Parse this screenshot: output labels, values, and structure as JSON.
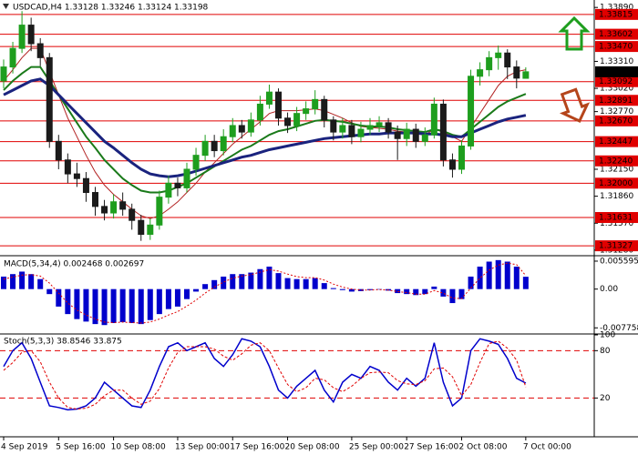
{
  "chart_data": [
    {
      "type": "candlestick",
      "title": "USDCAD,H4 1.33128 1.33246 1.33124 1.33198",
      "categories": [
        "4 Sep 2019",
        null,
        null,
        null,
        null,
        null,
        "5 Sep 16:00",
        null,
        null,
        null,
        null,
        null,
        "10 Sep 08:00",
        null,
        null,
        null,
        null,
        null,
        null,
        "13 Sep 00:00",
        null,
        null,
        null,
        null,
        null,
        "17 Sep 16:00",
        null,
        null,
        null,
        null,
        null,
        "20 Sep 08:00",
        null,
        null,
        null,
        null,
        null,
        null,
        "25 Sep 00:00",
        null,
        null,
        null,
        null,
        null,
        "27 Sep 16:00",
        null,
        null,
        null,
        null,
        null,
        "2 Oct 08:00",
        null,
        null,
        null,
        null,
        null,
        null,
        "7 Oct 00:00"
      ],
      "open": [
        1.331,
        1.3325,
        1.3345,
        1.337,
        1.335,
        1.3335,
        1.3245,
        1.3225,
        1.321,
        1.3205,
        1.319,
        1.3175,
        1.3168,
        1.318,
        1.3172,
        1.316,
        1.3145,
        1.3155,
        1.3185,
        1.32,
        1.3195,
        1.3215,
        1.323,
        1.3245,
        1.3235,
        1.325,
        1.3262,
        1.3255,
        1.3268,
        1.3285,
        1.3298,
        1.327,
        1.3262,
        1.3275,
        1.328,
        1.329,
        1.3268,
        1.3255,
        1.3262,
        1.325,
        1.3258,
        1.3262,
        1.3265,
        1.3255,
        1.3248,
        1.3258,
        1.3245,
        1.3252,
        1.3285,
        1.3225,
        1.3215,
        1.324,
        1.3315,
        1.3322,
        1.3335,
        1.334,
        1.3325,
        1.33128
      ],
      "high": [
        1.3333,
        1.3352,
        1.3385,
        1.3378,
        1.3356,
        1.334,
        1.3252,
        1.3232,
        1.3222,
        1.3212,
        1.3196,
        1.3182,
        1.3188,
        1.319,
        1.3178,
        1.3166,
        1.3162,
        1.3192,
        1.3208,
        1.3206,
        1.3222,
        1.3238,
        1.3252,
        1.3252,
        1.3258,
        1.327,
        1.3268,
        1.3276,
        1.3294,
        1.3306,
        1.3302,
        1.3276,
        1.3282,
        1.3288,
        1.33,
        1.3294,
        1.3272,
        1.327,
        1.3268,
        1.3266,
        1.327,
        1.3272,
        1.327,
        1.3262,
        1.3265,
        1.3264,
        1.326,
        1.3292,
        1.329,
        1.3232,
        1.3246,
        1.3322,
        1.333,
        1.3342,
        1.3348,
        1.3344,
        1.3332,
        1.33246
      ],
      "low": [
        1.3302,
        1.3318,
        1.334,
        1.3342,
        1.3326,
        1.3238,
        1.3215,
        1.32,
        1.3196,
        1.318,
        1.3165,
        1.316,
        1.3162,
        1.3165,
        1.315,
        1.3138,
        1.3139,
        1.315,
        1.3178,
        1.3186,
        1.319,
        1.3208,
        1.3224,
        1.3228,
        1.323,
        1.3244,
        1.3248,
        1.325,
        1.3262,
        1.328,
        1.3262,
        1.3254,
        1.3256,
        1.3268,
        1.3274,
        1.326,
        1.3246,
        1.3248,
        1.3242,
        1.3244,
        1.3252,
        1.3255,
        1.3248,
        1.3225,
        1.324,
        1.3238,
        1.324,
        1.3248,
        1.3218,
        1.3206,
        1.321,
        1.3236,
        1.3305,
        1.3315,
        1.3322,
        1.3312,
        1.3302,
        1.33124
      ],
      "close": [
        1.3325,
        1.3345,
        1.337,
        1.335,
        1.3335,
        1.3245,
        1.3225,
        1.321,
        1.3205,
        1.319,
        1.3175,
        1.3168,
        1.318,
        1.3172,
        1.316,
        1.3145,
        1.3155,
        1.3185,
        1.32,
        1.3195,
        1.3215,
        1.323,
        1.3245,
        1.3235,
        1.325,
        1.3262,
        1.3255,
        1.3268,
        1.3285,
        1.3298,
        1.327,
        1.3262,
        1.3275,
        1.328,
        1.329,
        1.3268,
        1.3255,
        1.3262,
        1.325,
        1.3258,
        1.3262,
        1.3265,
        1.3255,
        1.3248,
        1.3258,
        1.3245,
        1.3252,
        1.3285,
        1.3225,
        1.3215,
        1.324,
        1.3315,
        1.3322,
        1.3335,
        1.334,
        1.3325,
        1.3313,
        1.33198
      ],
      "up_color": "#1e9e1e",
      "down_color": "#1b1b1b",
      "series": [
        {
          "color": "#b22222",
          "width": 1,
          "values": [
            1.331,
            1.3322,
            1.3335,
            1.3345,
            1.3345,
            1.332,
            1.3295,
            1.327,
            1.325,
            1.323,
            1.3212,
            1.3198,
            1.3188,
            1.318,
            1.3172,
            1.3165,
            1.3162,
            1.3165,
            1.3172,
            1.318,
            1.319,
            1.32,
            1.3212,
            1.3222,
            1.3232,
            1.3242,
            1.325,
            1.3258,
            1.3266,
            1.3275,
            1.3278,
            1.3278,
            1.3278,
            1.3279,
            1.328,
            1.3278,
            1.3274,
            1.327,
            1.3265,
            1.3261,
            1.326,
            1.3259,
            1.3258,
            1.3256,
            1.3255,
            1.3253,
            1.3252,
            1.3258,
            1.3255,
            1.325,
            1.3245,
            1.326,
            1.3275,
            1.329,
            1.3305,
            1.3315,
            1.332,
            1.3322
          ]
        },
        {
          "color": "#1a7a1a",
          "width": 2,
          "values": [
            1.33,
            1.331,
            1.3318,
            1.3325,
            1.3325,
            1.331,
            1.3295,
            1.328,
            1.3265,
            1.325,
            1.3238,
            1.3225,
            1.3215,
            1.3205,
            1.3198,
            1.3192,
            1.319,
            1.319,
            1.3192,
            1.3196,
            1.32,
            1.3206,
            1.3212,
            1.3218,
            1.3224,
            1.323,
            1.3236,
            1.324,
            1.3246,
            1.3252,
            1.3256,
            1.3258,
            1.3261,
            1.3264,
            1.3267,
            1.3268,
            1.3267,
            1.3266,
            1.3264,
            1.3262,
            1.3261,
            1.3261,
            1.326,
            1.3258,
            1.3257,
            1.3256,
            1.3255,
            1.3258,
            1.3256,
            1.3252,
            1.325,
            1.3258,
            1.3266,
            1.3274,
            1.3282,
            1.3288,
            1.3292,
            1.3296
          ]
        },
        {
          "color": "#1a237e",
          "width": 3,
          "values": [
            1.3295,
            1.33,
            1.3305,
            1.331,
            1.3312,
            1.3305,
            1.3295,
            1.3285,
            1.3275,
            1.3265,
            1.3255,
            1.3245,
            1.3238,
            1.323,
            1.3222,
            1.3215,
            1.321,
            1.3208,
            1.3207,
            1.3208,
            1.321,
            1.3213,
            1.3216,
            1.3219,
            1.3222,
            1.3225,
            1.3228,
            1.323,
            1.3233,
            1.3236,
            1.3238,
            1.324,
            1.3242,
            1.3244,
            1.3246,
            1.3248,
            1.3249,
            1.325,
            1.3251,
            1.3252,
            1.3253,
            1.3253,
            1.3254,
            1.3254,
            1.3254,
            1.3254,
            1.3253,
            1.3253,
            1.3252,
            1.325,
            1.325,
            1.3254,
            1.3258,
            1.3262,
            1.3266,
            1.3269,
            1.3271,
            1.3273
          ]
        }
      ],
      "ylim": [
        1.3123,
        1.3397
      ],
      "yticks": [
        {
          "value": 1.3389,
          "label": "1.33890"
        },
        {
          "value": 1.3331,
          "label": "1.33310"
        },
        {
          "value": 1.3302,
          "label": "1.33020"
        },
        {
          "value": 1.3277,
          "label": "1.32770"
        },
        {
          "value": 1.3215,
          "label": "1.32150"
        },
        {
          "value": 1.3186,
          "label": "1.31860"
        },
        {
          "value": 1.3157,
          "label": "1.31570"
        },
        {
          "value": 1.3128,
          "label": "1.31280"
        }
      ],
      "levels": [
        1.33815,
        1.33602,
        {
          "value": 1.3347,
          "label": "1.33470"
        },
        1.33092,
        1.32891,
        {
          "value": 1.3267,
          "label": "1.32670"
        },
        1.32447,
        {
          "value": 1.3224,
          "label": "1.32240"
        },
        {
          "value": 1.32,
          "label": "1.32000"
        },
        1.31631,
        1.31327
      ],
      "level_color": "#e00000"
    },
    {
      "type": "macd",
      "title": "MACD(5,34,4) 0.002468 0.002697",
      "values": [
        0.0025,
        0.003,
        0.0035,
        0.003,
        0.002,
        -0.001,
        -0.0035,
        -0.005,
        -0.006,
        -0.0065,
        -0.007,
        -0.0072,
        -0.0068,
        -0.0066,
        -0.0068,
        -0.007,
        -0.0062,
        -0.005,
        -0.004,
        -0.0035,
        -0.002,
        -0.0005,
        0.001,
        0.0018,
        0.0025,
        0.003,
        0.003,
        0.0033,
        0.004,
        0.0045,
        0.0032,
        0.0022,
        0.002,
        0.002,
        0.0022,
        0.0012,
        0.0002,
        -0.0002,
        -0.0005,
        -0.0004,
        -0.0002,
        0.0,
        -0.0003,
        -0.0008,
        -0.001,
        -0.0012,
        -0.001,
        0.0005,
        -0.0015,
        -0.0028,
        -0.002,
        0.0025,
        0.0045,
        0.0055,
        0.0058,
        0.0055,
        0.0045,
        0.002468
      ],
      "signal": [
        0.002,
        0.0024,
        0.0028,
        0.0029,
        0.0026,
        0.0012,
        -0.0008,
        -0.0028,
        -0.0042,
        -0.0052,
        -0.006,
        -0.0066,
        -0.0067,
        -0.0066,
        -0.0067,
        -0.0068,
        -0.0066,
        -0.006,
        -0.0052,
        -0.0045,
        -0.0034,
        -0.0022,
        -0.0008,
        0.0004,
        0.0014,
        0.0022,
        0.0026,
        0.0029,
        0.0034,
        0.0039,
        0.0036,
        0.003,
        0.0025,
        0.0023,
        0.0023,
        0.0018,
        0.001,
        0.0004,
        0.0,
        -0.0002,
        -0.0002,
        -0.0001,
        -0.0002,
        -0.0005,
        -0.0007,
        -0.001,
        -0.001,
        -0.0003,
        -0.0008,
        -0.0018,
        -0.0019,
        0.0002,
        0.0022,
        0.0038,
        0.0048,
        0.0052,
        0.0049,
        0.002697
      ],
      "color": "#0000cc",
      "signal_color": "#e00000",
      "ylim": [
        -0.0088,
        0.0065
      ],
      "yticks": [
        0.005595,
        {
          "value": 0,
          "label": "0.00"
        },
        -0.007758
      ]
    },
    {
      "type": "stochastic",
      "title": "Stoch(5,3,3) 38.8546 33.875",
      "series": [
        {
          "color": "#0000cc",
          "dashed": false,
          "values": [
            60,
            80,
            90,
            70,
            40,
            10,
            8,
            5,
            6,
            10,
            20,
            40,
            30,
            20,
            10,
            8,
            30,
            60,
            85,
            90,
            80,
            85,
            90,
            70,
            60,
            75,
            95,
            92,
            85,
            60,
            30,
            20,
            35,
            45,
            55,
            30,
            15,
            40,
            50,
            45,
            60,
            55,
            40,
            30,
            45,
            35,
            45,
            90,
            40,
            10,
            20,
            80,
            95,
            92,
            88,
            70,
            45,
            38.8546
          ]
        },
        {
          "color": "#e00000",
          "dashed": true,
          "values": [
            55,
            65,
            78,
            80,
            66,
            40,
            20,
            8,
            6,
            7,
            12,
            23,
            30,
            30,
            20,
            12,
            16,
            32,
            58,
            78,
            85,
            85,
            85,
            82,
            73,
            68,
            76,
            87,
            90,
            80,
            58,
            37,
            28,
            33,
            45,
            43,
            33,
            28,
            35,
            45,
            52,
            53,
            52,
            42,
            38,
            37,
            42,
            57,
            58,
            47,
            23,
            37,
            65,
            89,
            92,
            83,
            68,
            33.875
          ]
        }
      ],
      "ylim": [
        -28,
        100
      ],
      "yticks": [
        100,
        80,
        20
      ],
      "levels": [
        80,
        20
      ],
      "level_color": "#e00000"
    }
  ]
}
